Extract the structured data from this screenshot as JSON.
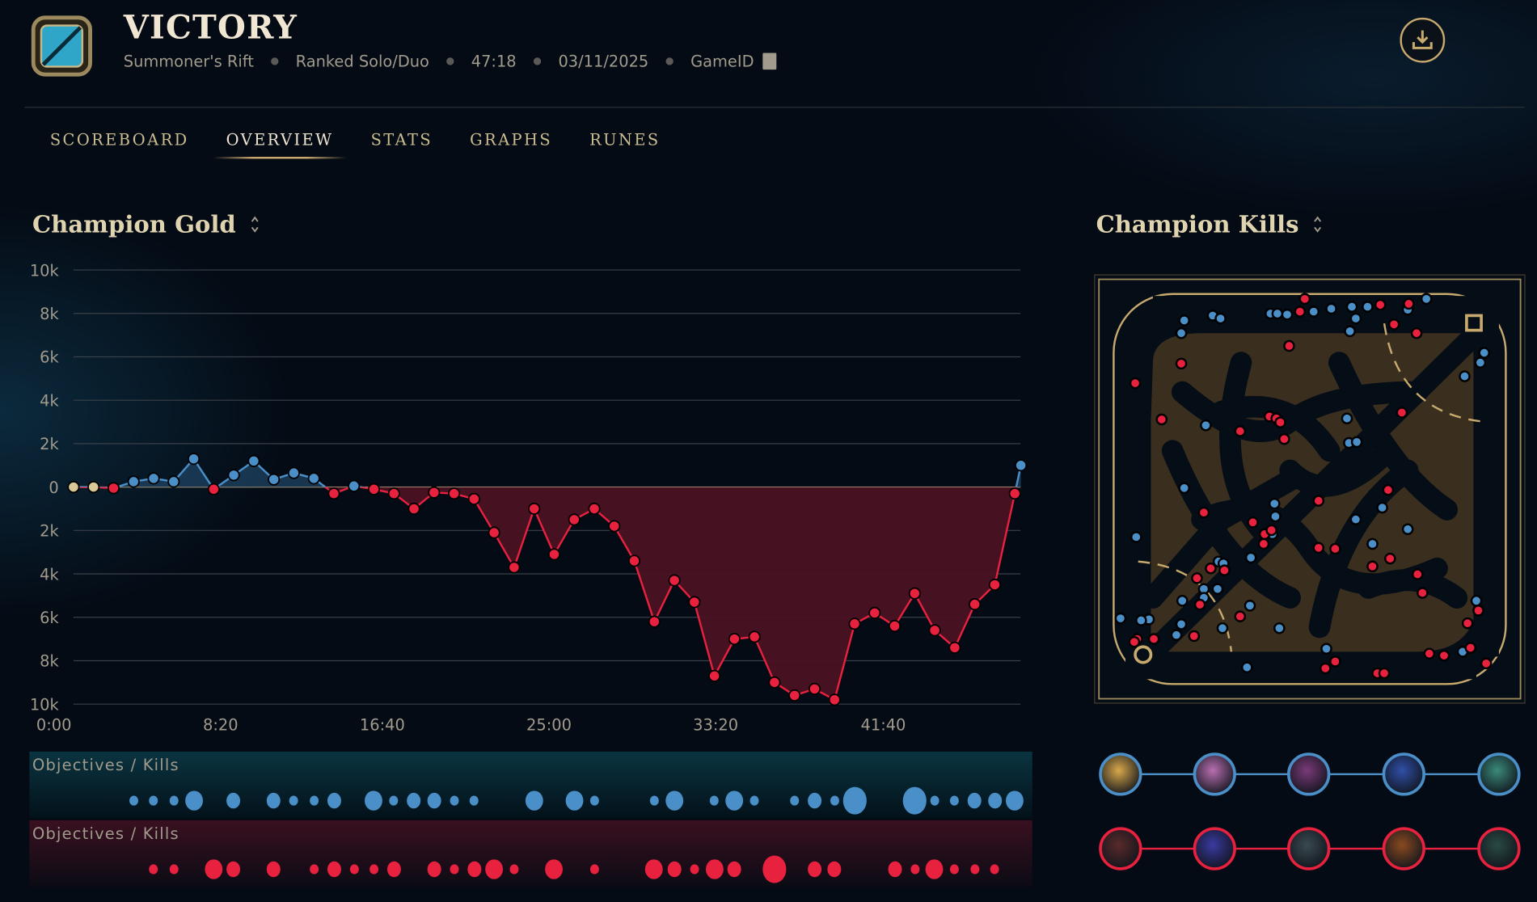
{
  "header": {
    "result": "VICTORY",
    "map": "Summoner's Rift",
    "queue": "Ranked Solo/Duo",
    "duration": "47:18",
    "date": "03/11/2025",
    "game_id_label": "GameID",
    "icons": {
      "emblem": "victory-emblem-icon",
      "copy": "copy-icon",
      "download": "download-icon"
    }
  },
  "tabs": [
    {
      "label": "SCOREBOARD",
      "active": false
    },
    {
      "label": "OVERVIEW",
      "active": true
    },
    {
      "label": "STATS",
      "active": false
    },
    {
      "label": "GRAPHS",
      "active": false
    },
    {
      "label": "RUNES",
      "active": false
    }
  ],
  "gold_section": {
    "title": "Champion Gold"
  },
  "kills_section": {
    "title": "Champion Kills"
  },
  "colors": {
    "blue": "#4a8fc8",
    "red": "#e8213f",
    "neutral": "#d9c89a",
    "gold": "#c8aa6e"
  },
  "chart_data": {
    "type": "area",
    "x_unit": "minutes",
    "x": [
      0,
      1,
      2,
      3,
      4,
      5,
      6,
      7,
      8,
      9,
      10,
      11,
      12,
      13,
      14,
      15,
      16,
      17,
      18,
      19,
      20,
      21,
      22,
      23,
      24,
      25,
      26,
      27,
      28,
      29,
      30,
      31,
      32,
      33,
      34,
      35,
      36,
      37,
      38,
      39,
      40,
      41,
      42,
      43,
      44,
      45,
      46,
      47,
      47.3
    ],
    "values": [
      0,
      0,
      -50,
      250,
      400,
      250,
      1300,
      -100,
      550,
      1200,
      350,
      650,
      400,
      -300,
      50,
      -100,
      -300,
      -1000,
      -250,
      -300,
      -550,
      -2100,
      -3700,
      -1000,
      -3100,
      -1500,
      -1000,
      -1800,
      -3400,
      -6200,
      -4300,
      -5300,
      -8700,
      -7000,
      -6900,
      -9000,
      -9600,
      -9300,
      -9800,
      -6300,
      -5800,
      -6400,
      -4900,
      -6600,
      -7400,
      -5400,
      -4500,
      -300,
      1000
    ],
    "ylim": [
      -10000,
      10000
    ],
    "y_ticks": [
      "10k",
      "8k",
      "6k",
      "4k",
      "2k",
      "0",
      "2k",
      "4k",
      "6k",
      "8k",
      "10k"
    ],
    "x_ticks": [
      "0:00",
      "8:20",
      "16:40",
      "25:00",
      "33:20",
      "41:40"
    ],
    "grid": true
  },
  "objectives": {
    "label": "Objectives / Kills",
    "blue": [
      [
        3,
        "s"
      ],
      [
        4,
        "s"
      ],
      [
        5,
        "s"
      ],
      [
        6,
        "l"
      ],
      [
        8,
        "m"
      ],
      [
        10,
        "m"
      ],
      [
        11,
        "s"
      ],
      [
        12,
        "s"
      ],
      [
        13,
        "m"
      ],
      [
        15,
        "l"
      ],
      [
        16,
        "s"
      ],
      [
        17,
        "m"
      ],
      [
        18,
        "m"
      ],
      [
        19,
        "s"
      ],
      [
        20,
        "s"
      ],
      [
        23,
        "l"
      ],
      [
        25,
        "l"
      ],
      [
        26,
        "s"
      ],
      [
        29,
        "s"
      ],
      [
        30,
        "l"
      ],
      [
        32,
        "s"
      ],
      [
        33,
        "l"
      ],
      [
        34,
        "s"
      ],
      [
        36,
        "s"
      ],
      [
        37,
        "m"
      ],
      [
        38,
        "s"
      ],
      [
        39,
        "xl"
      ],
      [
        42,
        "xl"
      ],
      [
        43,
        "s"
      ],
      [
        44,
        "s"
      ],
      [
        45,
        "m"
      ],
      [
        46,
        "m"
      ],
      [
        47,
        "l"
      ]
    ],
    "red": [
      [
        4,
        "s"
      ],
      [
        5,
        "s"
      ],
      [
        7,
        "l"
      ],
      [
        8,
        "m"
      ],
      [
        10,
        "m"
      ],
      [
        12,
        "s"
      ],
      [
        13,
        "m"
      ],
      [
        14,
        "s"
      ],
      [
        15,
        "s"
      ],
      [
        16,
        "m"
      ],
      [
        18,
        "m"
      ],
      [
        19,
        "s"
      ],
      [
        20,
        "m"
      ],
      [
        21,
        "l"
      ],
      [
        22,
        "s"
      ],
      [
        24,
        "l"
      ],
      [
        26,
        "s"
      ],
      [
        29,
        "l"
      ],
      [
        30,
        "m"
      ],
      [
        31,
        "s"
      ],
      [
        32,
        "l"
      ],
      [
        33,
        "m"
      ],
      [
        35,
        "xl"
      ],
      [
        37,
        "m"
      ],
      [
        38,
        "m"
      ],
      [
        41,
        "m"
      ],
      [
        42,
        "s"
      ],
      [
        43,
        "l"
      ],
      [
        44,
        "s"
      ],
      [
        45,
        "s"
      ],
      [
        46,
        "s"
      ]
    ]
  },
  "teams": {
    "blue": {
      "portrait_count": 5
    },
    "red": {
      "portrait_count": 5
    }
  }
}
